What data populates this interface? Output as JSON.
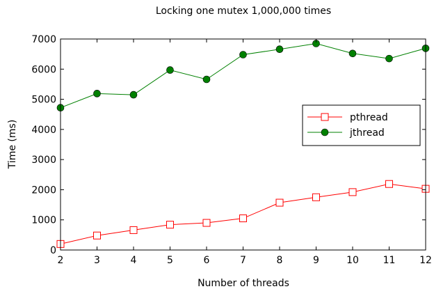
{
  "chart_data": {
    "type": "line",
    "title": "Locking one mutex 1,000,000 times",
    "xlabel": "Number of threads",
    "ylabel": "Time (ms)",
    "x": [
      2,
      3,
      4,
      5,
      6,
      7,
      8,
      9,
      10,
      11,
      12
    ],
    "xlim": [
      2,
      12
    ],
    "ylim": [
      0,
      7000
    ],
    "xticks": [
      2,
      3,
      4,
      5,
      6,
      7,
      8,
      9,
      10,
      11,
      12
    ],
    "yticks": [
      0,
      1000,
      2000,
      3000,
      4000,
      5000,
      6000,
      7000
    ],
    "grid": false,
    "legend_position": "right",
    "series": [
      {
        "name": "pthread",
        "color": "#ff0000",
        "marker": "square-open",
        "values": [
          200,
          480,
          660,
          840,
          900,
          1050,
          1570,
          1750,
          1920,
          2190,
          2030
        ]
      },
      {
        "name": "jthread",
        "color": "#008000",
        "marker": "circle-filled",
        "values": [
          4720,
          5190,
          5150,
          5970,
          5660,
          6480,
          6660,
          6850,
          6520,
          6350,
          6690
        ]
      }
    ]
  }
}
